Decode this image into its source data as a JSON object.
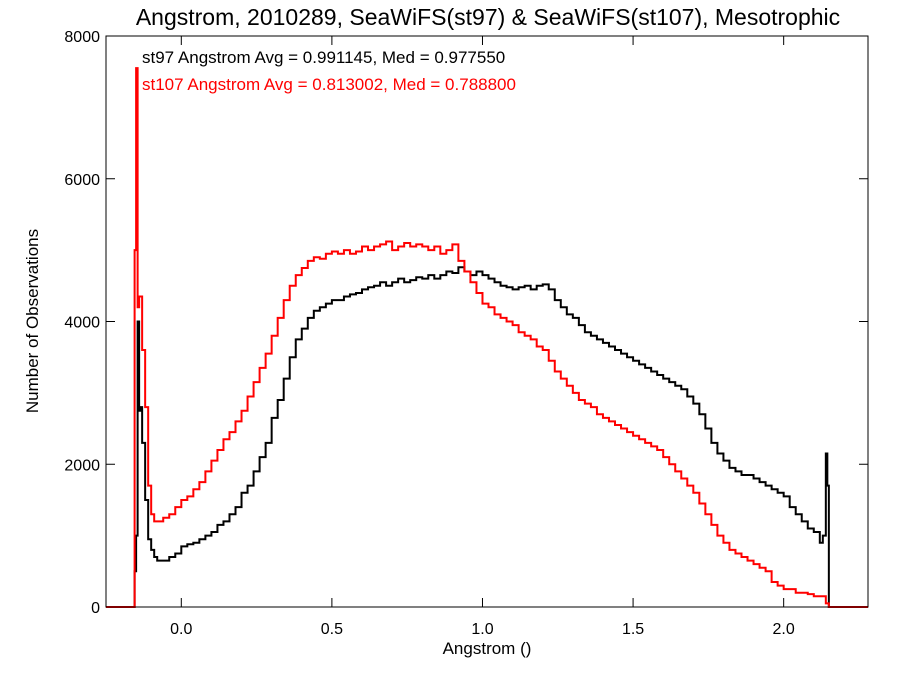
{
  "chart_data": {
    "type": "line",
    "title": "Angstrom, 2010289, SeaWiFS(st97) & SeaWiFS(st107), Mesotrophic",
    "xlabel": "Angstrom ()",
    "ylabel": "Number of Observations",
    "xlim": [
      -0.25,
      2.28
    ],
    "ylim": [
      0,
      8000
    ],
    "xticks": [
      0.0,
      0.5,
      1.0,
      1.5,
      2.0
    ],
    "xtick_labels": [
      "0.0",
      "0.5",
      "1.0",
      "1.5",
      "2.0"
    ],
    "yticks": [
      0,
      2000,
      4000,
      6000,
      8000
    ],
    "ytick_labels": [
      "0",
      "2000",
      "4000",
      "6000",
      "8000"
    ],
    "grid": false,
    "annotations": [
      {
        "text": "st97 Angstrom Avg = 0.991145, Med = 0.977550",
        "color": "#000000"
      },
      {
        "text": "st107 Angstrom Avg = 0.813002, Med = 0.788800",
        "color": "#ff0000"
      }
    ],
    "series": [
      {
        "color": "#000000",
        "points": [
          [
            -0.25,
            0
          ],
          [
            -0.16,
            0
          ],
          [
            -0.155,
            500
          ],
          [
            -0.15,
            1000
          ],
          [
            -0.145,
            4000
          ],
          [
            -0.14,
            2750
          ],
          [
            -0.135,
            2800
          ],
          [
            -0.13,
            2300
          ],
          [
            -0.12,
            1500
          ],
          [
            -0.11,
            950
          ],
          [
            -0.1,
            800
          ],
          [
            -0.09,
            700
          ],
          [
            -0.08,
            650
          ],
          [
            -0.06,
            650
          ],
          [
            -0.04,
            700
          ],
          [
            -0.02,
            750
          ],
          [
            0.0,
            850
          ],
          [
            0.02,
            880
          ],
          [
            0.04,
            900
          ],
          [
            0.06,
            950
          ],
          [
            0.08,
            1000
          ],
          [
            0.1,
            1050
          ],
          [
            0.12,
            1150
          ],
          [
            0.14,
            1200
          ],
          [
            0.16,
            1300
          ],
          [
            0.18,
            1400
          ],
          [
            0.2,
            1600
          ],
          [
            0.22,
            1700
          ],
          [
            0.24,
            1900
          ],
          [
            0.26,
            2100
          ],
          [
            0.28,
            2300
          ],
          [
            0.3,
            2650
          ],
          [
            0.32,
            2900
          ],
          [
            0.34,
            3200
          ],
          [
            0.36,
            3500
          ],
          [
            0.38,
            3750
          ],
          [
            0.4,
            3900
          ],
          [
            0.42,
            4050
          ],
          [
            0.44,
            4150
          ],
          [
            0.46,
            4200
          ],
          [
            0.48,
            4250
          ],
          [
            0.5,
            4300
          ],
          [
            0.52,
            4300
          ],
          [
            0.54,
            4350
          ],
          [
            0.56,
            4380
          ],
          [
            0.58,
            4400
          ],
          [
            0.6,
            4450
          ],
          [
            0.62,
            4480
          ],
          [
            0.64,
            4500
          ],
          [
            0.66,
            4550
          ],
          [
            0.68,
            4500
          ],
          [
            0.7,
            4550
          ],
          [
            0.72,
            4600
          ],
          [
            0.74,
            4550
          ],
          [
            0.76,
            4580
          ],
          [
            0.78,
            4620
          ],
          [
            0.8,
            4600
          ],
          [
            0.82,
            4650
          ],
          [
            0.84,
            4600
          ],
          [
            0.86,
            4650
          ],
          [
            0.88,
            4700
          ],
          [
            0.9,
            4680
          ],
          [
            0.92,
            4760
          ],
          [
            0.94,
            4700
          ],
          [
            0.96,
            4650
          ],
          [
            0.98,
            4700
          ],
          [
            1.0,
            4650
          ],
          [
            1.02,
            4600
          ],
          [
            1.04,
            4550
          ],
          [
            1.06,
            4500
          ],
          [
            1.08,
            4480
          ],
          [
            1.1,
            4450
          ],
          [
            1.12,
            4480
          ],
          [
            1.14,
            4500
          ],
          [
            1.16,
            4450
          ],
          [
            1.18,
            4500
          ],
          [
            1.2,
            4520
          ],
          [
            1.22,
            4450
          ],
          [
            1.24,
            4300
          ],
          [
            1.26,
            4200
          ],
          [
            1.28,
            4100
          ],
          [
            1.3,
            4050
          ],
          [
            1.32,
            3950
          ],
          [
            1.34,
            3850
          ],
          [
            1.36,
            3800
          ],
          [
            1.38,
            3750
          ],
          [
            1.4,
            3700
          ],
          [
            1.42,
            3650
          ],
          [
            1.44,
            3600
          ],
          [
            1.46,
            3550
          ],
          [
            1.48,
            3500
          ],
          [
            1.5,
            3450
          ],
          [
            1.52,
            3400
          ],
          [
            1.54,
            3350
          ],
          [
            1.56,
            3300
          ],
          [
            1.58,
            3250
          ],
          [
            1.6,
            3200
          ],
          [
            1.62,
            3150
          ],
          [
            1.64,
            3100
          ],
          [
            1.66,
            3050
          ],
          [
            1.68,
            2950
          ],
          [
            1.7,
            2850
          ],
          [
            1.72,
            2700
          ],
          [
            1.74,
            2500
          ],
          [
            1.76,
            2300
          ],
          [
            1.78,
            2150
          ],
          [
            1.8,
            2050
          ],
          [
            1.82,
            1950
          ],
          [
            1.84,
            1900
          ],
          [
            1.86,
            1850
          ],
          [
            1.88,
            1850
          ],
          [
            1.9,
            1800
          ],
          [
            1.92,
            1750
          ],
          [
            1.94,
            1700
          ],
          [
            1.96,
            1650
          ],
          [
            1.98,
            1600
          ],
          [
            2.0,
            1550
          ],
          [
            2.02,
            1400
          ],
          [
            2.04,
            1300
          ],
          [
            2.06,
            1200
          ],
          [
            2.08,
            1100
          ],
          [
            2.1,
            1050
          ],
          [
            2.12,
            900
          ],
          [
            2.13,
            1000
          ],
          [
            2.14,
            2150
          ],
          [
            2.145,
            1700
          ],
          [
            2.15,
            0
          ],
          [
            2.28,
            0
          ]
        ]
      },
      {
        "color": "#ff0000",
        "points": [
          [
            -0.25,
            0
          ],
          [
            -0.16,
            0
          ],
          [
            -0.155,
            5000
          ],
          [
            -0.15,
            7550
          ],
          [
            -0.145,
            4200
          ],
          [
            -0.14,
            4350
          ],
          [
            -0.13,
            3600
          ],
          [
            -0.12,
            2800
          ],
          [
            -0.11,
            1700
          ],
          [
            -0.1,
            1300
          ],
          [
            -0.09,
            1200
          ],
          [
            -0.08,
            1200
          ],
          [
            -0.06,
            1250
          ],
          [
            -0.04,
            1300
          ],
          [
            -0.02,
            1400
          ],
          [
            0.0,
            1500
          ],
          [
            0.02,
            1550
          ],
          [
            0.04,
            1650
          ],
          [
            0.06,
            1750
          ],
          [
            0.08,
            1900
          ],
          [
            0.1,
            2050
          ],
          [
            0.12,
            2200
          ],
          [
            0.14,
            2350
          ],
          [
            0.16,
            2450
          ],
          [
            0.18,
            2600
          ],
          [
            0.2,
            2750
          ],
          [
            0.22,
            2950
          ],
          [
            0.24,
            3150
          ],
          [
            0.26,
            3350
          ],
          [
            0.28,
            3550
          ],
          [
            0.3,
            3800
          ],
          [
            0.32,
            4050
          ],
          [
            0.34,
            4300
          ],
          [
            0.36,
            4500
          ],
          [
            0.38,
            4650
          ],
          [
            0.4,
            4750
          ],
          [
            0.42,
            4850
          ],
          [
            0.44,
            4900
          ],
          [
            0.46,
            4880
          ],
          [
            0.48,
            4950
          ],
          [
            0.5,
            4980
          ],
          [
            0.52,
            4950
          ],
          [
            0.54,
            5000
          ],
          [
            0.56,
            4950
          ],
          [
            0.58,
            4980
          ],
          [
            0.6,
            5050
          ],
          [
            0.62,
            5000
          ],
          [
            0.64,
            5050
          ],
          [
            0.66,
            5080
          ],
          [
            0.68,
            5120
          ],
          [
            0.7,
            5000
          ],
          [
            0.72,
            5050
          ],
          [
            0.74,
            5100
          ],
          [
            0.76,
            5050
          ],
          [
            0.78,
            5080
          ],
          [
            0.8,
            5050
          ],
          [
            0.82,
            5000
          ],
          [
            0.84,
            5050
          ],
          [
            0.86,
            4950
          ],
          [
            0.88,
            5000
          ],
          [
            0.9,
            5080
          ],
          [
            0.92,
            4850
          ],
          [
            0.94,
            4700
          ],
          [
            0.96,
            4550
          ],
          [
            0.98,
            4400
          ],
          [
            1.0,
            4250
          ],
          [
            1.02,
            4200
          ],
          [
            1.04,
            4100
          ],
          [
            1.06,
            4050
          ],
          [
            1.08,
            4000
          ],
          [
            1.1,
            3950
          ],
          [
            1.12,
            3850
          ],
          [
            1.14,
            3800
          ],
          [
            1.16,
            3750
          ],
          [
            1.18,
            3650
          ],
          [
            1.2,
            3600
          ],
          [
            1.22,
            3450
          ],
          [
            1.24,
            3300
          ],
          [
            1.26,
            3200
          ],
          [
            1.28,
            3100
          ],
          [
            1.3,
            3000
          ],
          [
            1.32,
            2900
          ],
          [
            1.34,
            2850
          ],
          [
            1.36,
            2800
          ],
          [
            1.38,
            2700
          ],
          [
            1.4,
            2650
          ],
          [
            1.42,
            2600
          ],
          [
            1.44,
            2550
          ],
          [
            1.46,
            2500
          ],
          [
            1.48,
            2450
          ],
          [
            1.5,
            2400
          ],
          [
            1.52,
            2350
          ],
          [
            1.54,
            2300
          ],
          [
            1.56,
            2250
          ],
          [
            1.58,
            2200
          ],
          [
            1.6,
            2100
          ],
          [
            1.62,
            2000
          ],
          [
            1.64,
            1900
          ],
          [
            1.66,
            1800
          ],
          [
            1.68,
            1700
          ],
          [
            1.7,
            1600
          ],
          [
            1.72,
            1450
          ],
          [
            1.74,
            1300
          ],
          [
            1.76,
            1150
          ],
          [
            1.78,
            1000
          ],
          [
            1.8,
            900
          ],
          [
            1.82,
            800
          ],
          [
            1.84,
            750
          ],
          [
            1.86,
            700
          ],
          [
            1.88,
            650
          ],
          [
            1.9,
            600
          ],
          [
            1.92,
            550
          ],
          [
            1.94,
            500
          ],
          [
            1.96,
            350
          ],
          [
            1.98,
            300
          ],
          [
            2.0,
            250
          ],
          [
            2.02,
            250
          ],
          [
            2.04,
            200
          ],
          [
            2.06,
            200
          ],
          [
            2.08,
            180
          ],
          [
            2.1,
            150
          ],
          [
            2.12,
            150
          ],
          [
            2.14,
            50
          ],
          [
            2.15,
            0
          ],
          [
            2.28,
            0
          ]
        ]
      }
    ]
  }
}
